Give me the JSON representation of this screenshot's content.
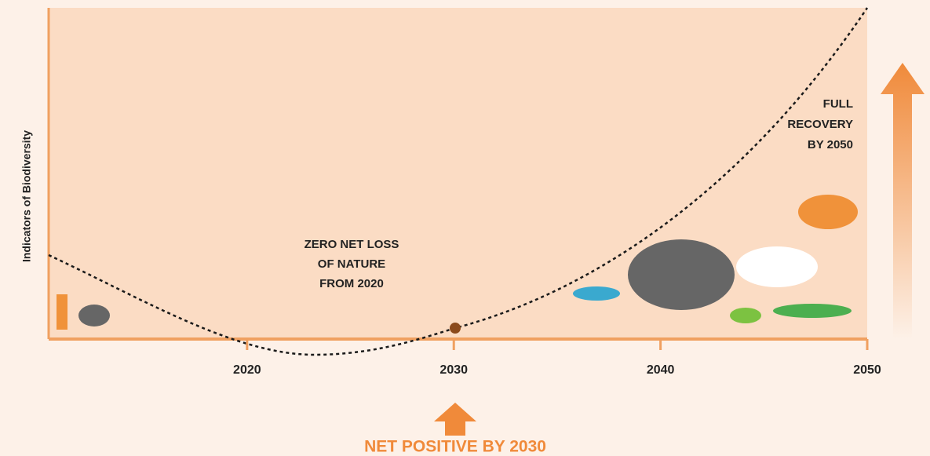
{
  "chart_data": {
    "type": "line",
    "y_axis_label": "Indicators of Biodiversity",
    "xlim": [
      2010.4,
      2050
    ],
    "xticks": [
      2020,
      2030,
      2040,
      2050
    ],
    "annotations": [
      [
        "ZERO NET LOSS",
        "OF NATURE",
        "FROM 2020"
      ],
      [
        "FULL",
        "RECOVERY",
        "BY 2050"
      ],
      [
        "NET POSITIVE BY 2030"
      ]
    ]
  }
}
